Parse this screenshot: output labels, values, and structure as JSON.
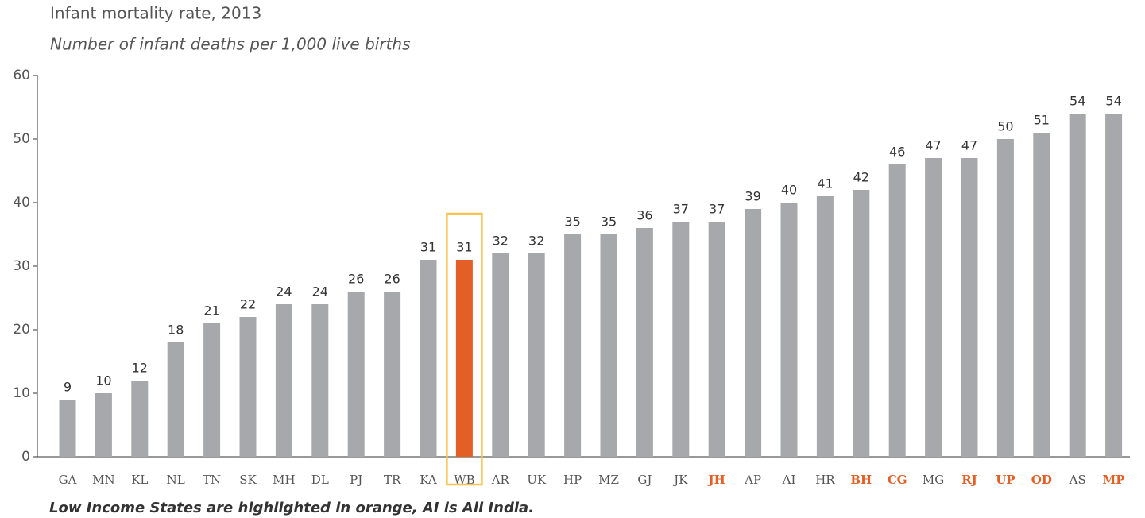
{
  "chart_data": {
    "type": "bar",
    "title": "Infant mortality rate, 2013",
    "subtitle": "Number of infant deaths per 1,000 live births",
    "footnote": "Low Income States are highlighted in orange, AI is All India.",
    "categories": [
      "GA",
      "MN",
      "KL",
      "NL",
      "TN",
      "SK",
      "MH",
      "DL",
      "PJ",
      "TR",
      "KA",
      "WB",
      "AR",
      "UK",
      "HP",
      "MZ",
      "GJ",
      "JK",
      "JH",
      "AP",
      "AI",
      "HR",
      "BH",
      "CG",
      "MG",
      "RJ",
      "UP",
      "OD",
      "AS",
      "MP"
    ],
    "values": [
      9,
      10,
      12,
      18,
      21,
      22,
      24,
      24,
      26,
      26,
      31,
      31,
      32,
      32,
      35,
      35,
      36,
      37,
      37,
      39,
      40,
      41,
      42,
      46,
      47,
      47,
      50,
      51,
      54,
      54
    ],
    "color": "#a7a8ab",
    "highlight_color": "#e35f26",
    "box_color": "#f7c44f",
    "colors": [
      "#a7a8ab",
      "#a7a8ab",
      "#a7a8ab",
      "#a7a8ab",
      "#a7a8ab",
      "#a7a8ab",
      "#a7a8ab",
      "#a7a8ab",
      "#a7a8ab",
      "#a7a8ab",
      "#a7a8ab",
      "#e35f26",
      "#a7a8ab",
      "#a7a8ab",
      "#a7a8ab",
      "#a7a8ab",
      "#a7a8ab",
      "#a7a8ab",
      "#a7a8ab",
      "#a7a8ab",
      "#a7a8ab",
      "#a7a8ab",
      "#a7a8ab",
      "#a7a8ab",
      "#a7a8ab",
      "#a7a8ab",
      "#a7a8ab",
      "#a7a8ab",
      "#a7a8ab",
      "#a7a8ab"
    ],
    "label_colors": [
      "#555555",
      "#555555",
      "#555555",
      "#555555",
      "#555555",
      "#555555",
      "#555555",
      "#555555",
      "#555555",
      "#555555",
      "#555555",
      "#555555",
      "#555555",
      "#555555",
      "#555555",
      "#555555",
      "#555555",
      "#555555",
      "#e35f26",
      "#555555",
      "#555555",
      "#555555",
      "#e35f26",
      "#e35f26",
      "#555555",
      "#e35f26",
      "#e35f26",
      "#e35f26",
      "#555555",
      "#e35f26"
    ],
    "ylim": [
      0,
      60
    ],
    "yticks": [
      0,
      10,
      20,
      30,
      40,
      50,
      60
    ],
    "grid": false
  }
}
